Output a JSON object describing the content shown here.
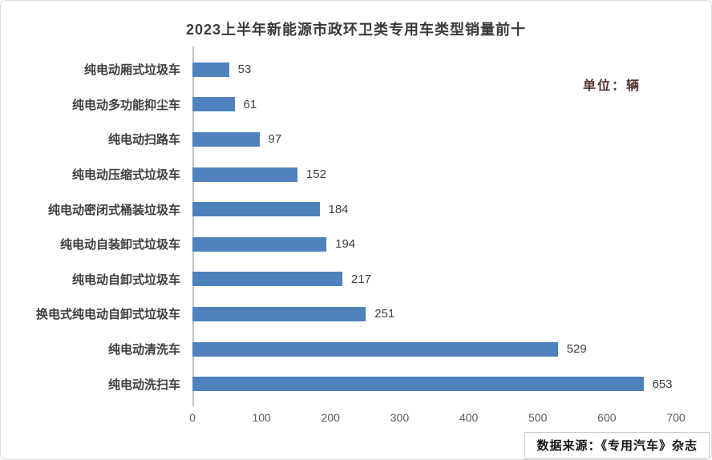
{
  "page": {
    "title": "2023上半年新能源市政环卫类专用车类型销量前十",
    "unit_label": "单位：辆",
    "source_label": "数据来源：《专用汽车》杂志"
  },
  "colors": {
    "bar": "#4f81bd",
    "title_text": "#3a3a3a",
    "category_text": "#3d3d3d",
    "value_text": "#3f3f3f",
    "tick_text": "#595959",
    "unit_text": "#553333",
    "axis_line": "#c2c2c6",
    "frame_border": "#dcd8e2"
  },
  "chart_data": {
    "type": "bar",
    "orientation": "horizontal",
    "title": "2023上半年新能源市政环卫类专用车类型销量前十",
    "unit": "单位：辆",
    "categories": [
      "纯电动厢式垃圾车",
      "纯电动多功能抑尘车",
      "纯电动扫路车",
      "纯电动压缩式垃圾车",
      "纯电动密闭式桶装垃圾车",
      "纯电动自装卸式垃圾车",
      "纯电动自卸式垃圾车",
      "换电式纯电动自卸式垃圾车",
      "纯电动清洗车",
      "纯电动洗扫车"
    ],
    "values": [
      53,
      61,
      97,
      152,
      184,
      194,
      217,
      251,
      529,
      653
    ],
    "xlabel": "",
    "ylabel": "",
    "xlim": [
      0,
      700
    ],
    "xticks": [
      0,
      100,
      200,
      300,
      400,
      500,
      600,
      700
    ],
    "grid": false,
    "data_labels": true,
    "legend": "none",
    "source": "数据来源：《专用汽车》杂志"
  }
}
